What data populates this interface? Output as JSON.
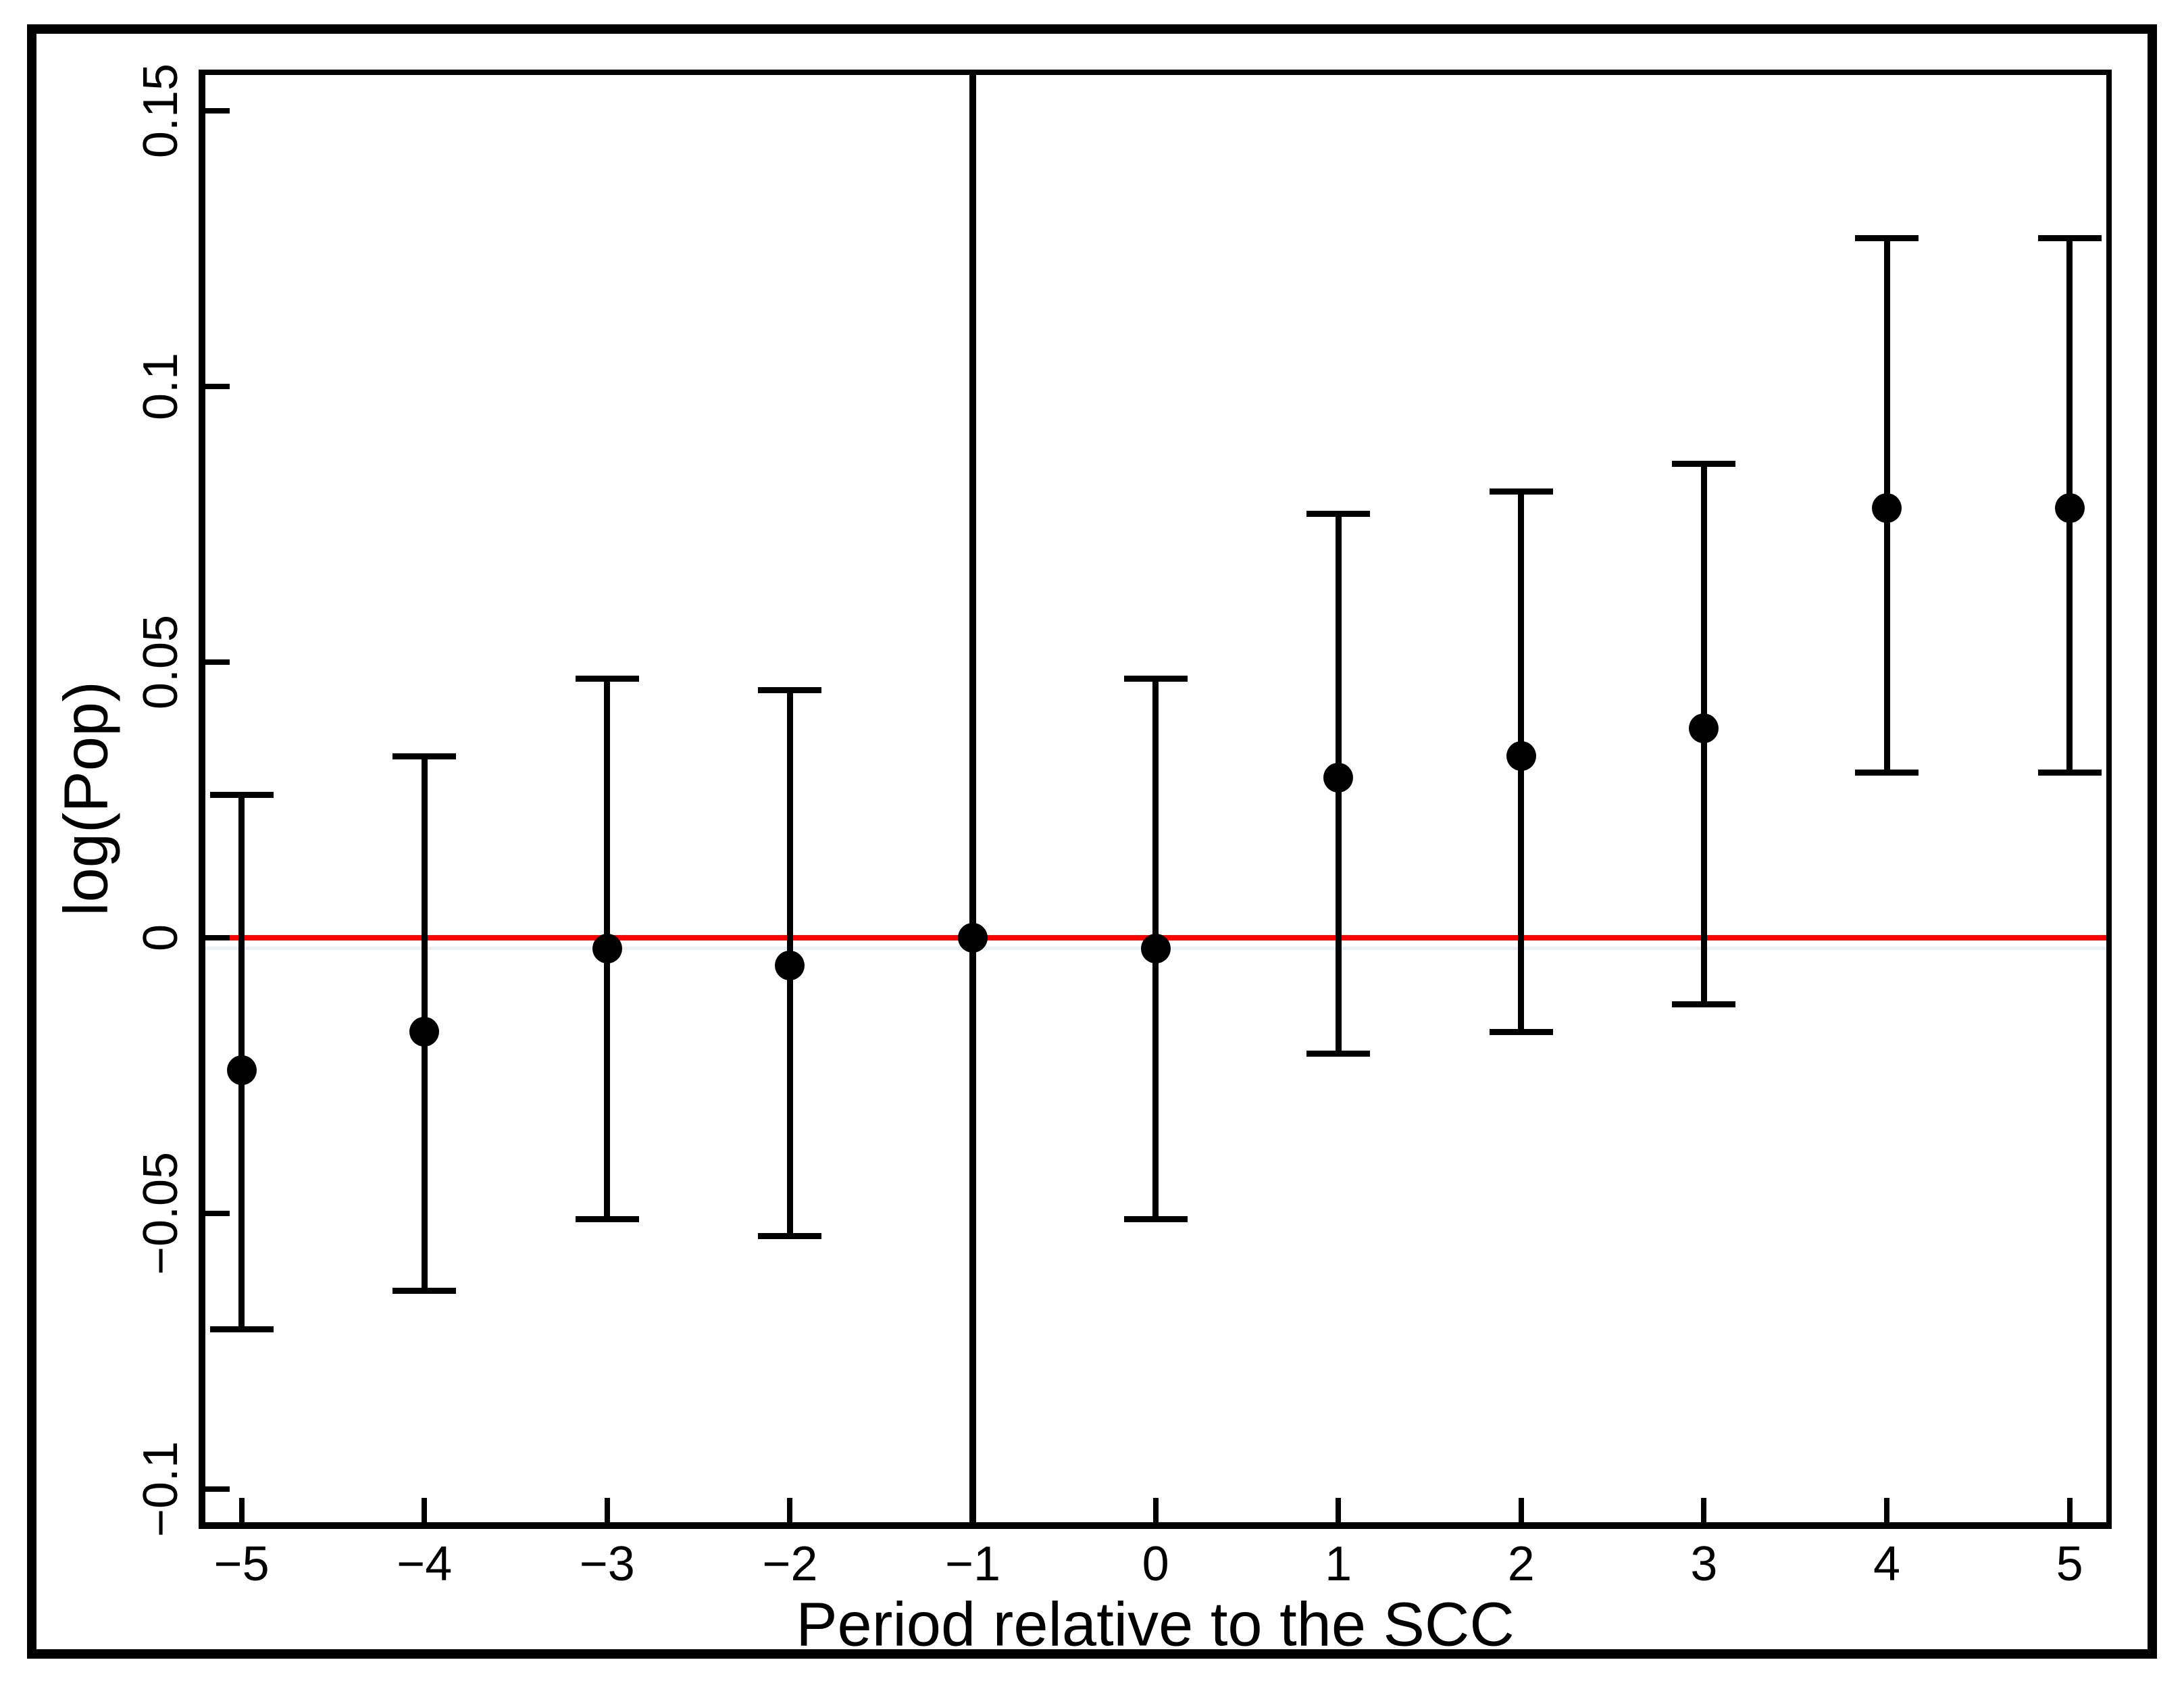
{
  "chart_data": {
    "type": "scatter",
    "subtype": "event-study point estimates with confidence intervals",
    "title": "",
    "xlabel": "Period relative to the SCC",
    "ylabel": "log(Pop)",
    "x": [
      -5,
      -4,
      -3,
      -2,
      -1,
      0,
      1,
      2,
      3,
      4,
      5
    ],
    "estimates": [
      -0.024,
      -0.017,
      -0.002,
      -0.005,
      0.0,
      -0.002,
      0.029,
      0.033,
      0.038,
      0.078,
      0.078
    ],
    "ci_low": [
      -0.071,
      -0.064,
      -0.051,
      -0.054,
      null,
      -0.051,
      -0.021,
      -0.017,
      -0.012,
      0.03,
      0.03
    ],
    "ci_high": [
      0.026,
      0.033,
      0.047,
      0.045,
      null,
      0.047,
      0.077,
      0.081,
      0.086,
      0.127,
      0.127
    ],
    "reference_period": -1,
    "x_tick_labels": [
      "−5",
      "−4",
      "−3",
      "−2",
      "−1",
      "0",
      "1",
      "2",
      "3",
      "4",
      "5"
    ],
    "y_ticks": [
      -0.1,
      -0.05,
      0,
      0.05,
      0.1,
      0.15
    ],
    "y_tick_labels": [
      "−0.1",
      "−0.05",
      "0",
      "0.05",
      "0.1",
      "0.15"
    ],
    "xlim": [
      -5.2,
      5.2
    ],
    "ylim": [
      -0.107,
      0.157
    ],
    "grid": false,
    "legend": false,
    "zero_line": {
      "y": 0,
      "color": "#ff0000"
    },
    "reference_vline": {
      "x": -1,
      "color": "#000000"
    },
    "colors": {
      "marker": "#000000",
      "error_bar": "#000000",
      "zero_line": "#ff0000",
      "pale_line_below_zero": "#e7f0fa",
      "frame": "#000000",
      "background": "#ffffff"
    }
  }
}
